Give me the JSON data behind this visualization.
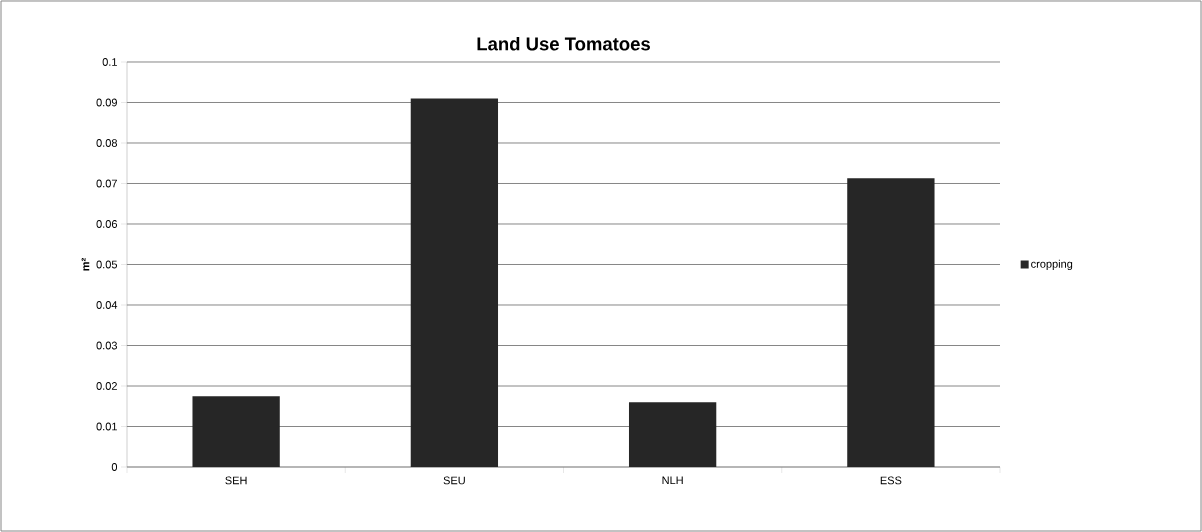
{
  "chart_data": {
    "type": "bar",
    "title": "Land Use Tomatoes",
    "ylabel": "m²",
    "categories": [
      "SEH",
      "SEU",
      "NLH",
      "ESS"
    ],
    "series": [
      {
        "name": "cropping",
        "color": "#262626",
        "values": [
          0.0175,
          0.091,
          0.016,
          0.0713
        ]
      }
    ],
    "ylim": [
      0,
      0.1
    ],
    "yticks": [
      0,
      0.01,
      0.02,
      0.03,
      0.04,
      0.05,
      0.06,
      0.07,
      0.08,
      0.09,
      0.1
    ],
    "grid": "y",
    "legend": "right"
  }
}
